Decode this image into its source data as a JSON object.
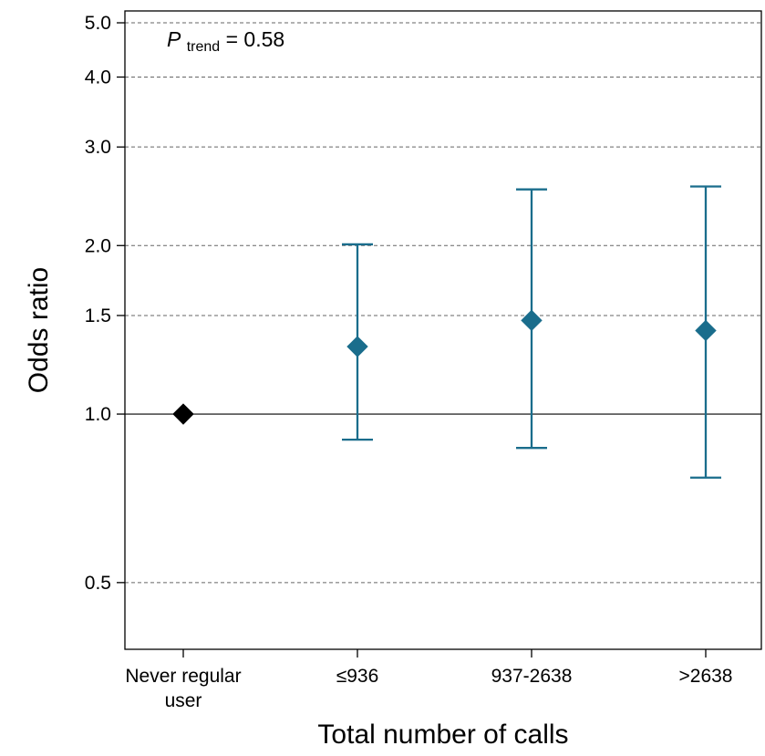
{
  "chart_data": {
    "type": "scatter",
    "subtype": "odds-ratio-with-95ci",
    "ylabel": "Odds ratio",
    "xlabel": "Total number of calls",
    "y_scale": "log",
    "ylim": [
      0.38,
      5.25
    ],
    "yticks": [
      {
        "value": 0.5,
        "label": "0.5"
      },
      {
        "value": 1.0,
        "label": "1.0"
      },
      {
        "value": 1.5,
        "label": "1.5"
      },
      {
        "value": 2.0,
        "label": "2.0"
      },
      {
        "value": 3.0,
        "label": "3.0"
      },
      {
        "value": 4.0,
        "label": "4.0"
      },
      {
        "value": 5.0,
        "label": "5.0"
      }
    ],
    "grid": "horizontal-dashed",
    "reference_line": 1.0,
    "categories": [
      {
        "label_lines": [
          "Never regular",
          "user"
        ]
      },
      {
        "label_lines": [
          "≤936"
        ]
      },
      {
        "label_lines": [
          "937-2638"
        ]
      },
      {
        "label_lines": [
          ">2638"
        ]
      }
    ],
    "points": [
      {
        "or": 1.0,
        "ci_low": null,
        "ci_high": null,
        "color": "#000000"
      },
      {
        "or": 1.32,
        "ci_low": 0.9,
        "ci_high": 2.01,
        "color": "#1a6d8c"
      },
      {
        "or": 1.47,
        "ci_low": 0.87,
        "ci_high": 2.52,
        "color": "#1a6d8c"
      },
      {
        "or": 1.41,
        "ci_low": 0.77,
        "ci_high": 2.55,
        "color": "#1a6d8c"
      }
    ],
    "annotation": {
      "italic": "P",
      "subscript": "trend",
      "rest": " = 0.58"
    }
  }
}
